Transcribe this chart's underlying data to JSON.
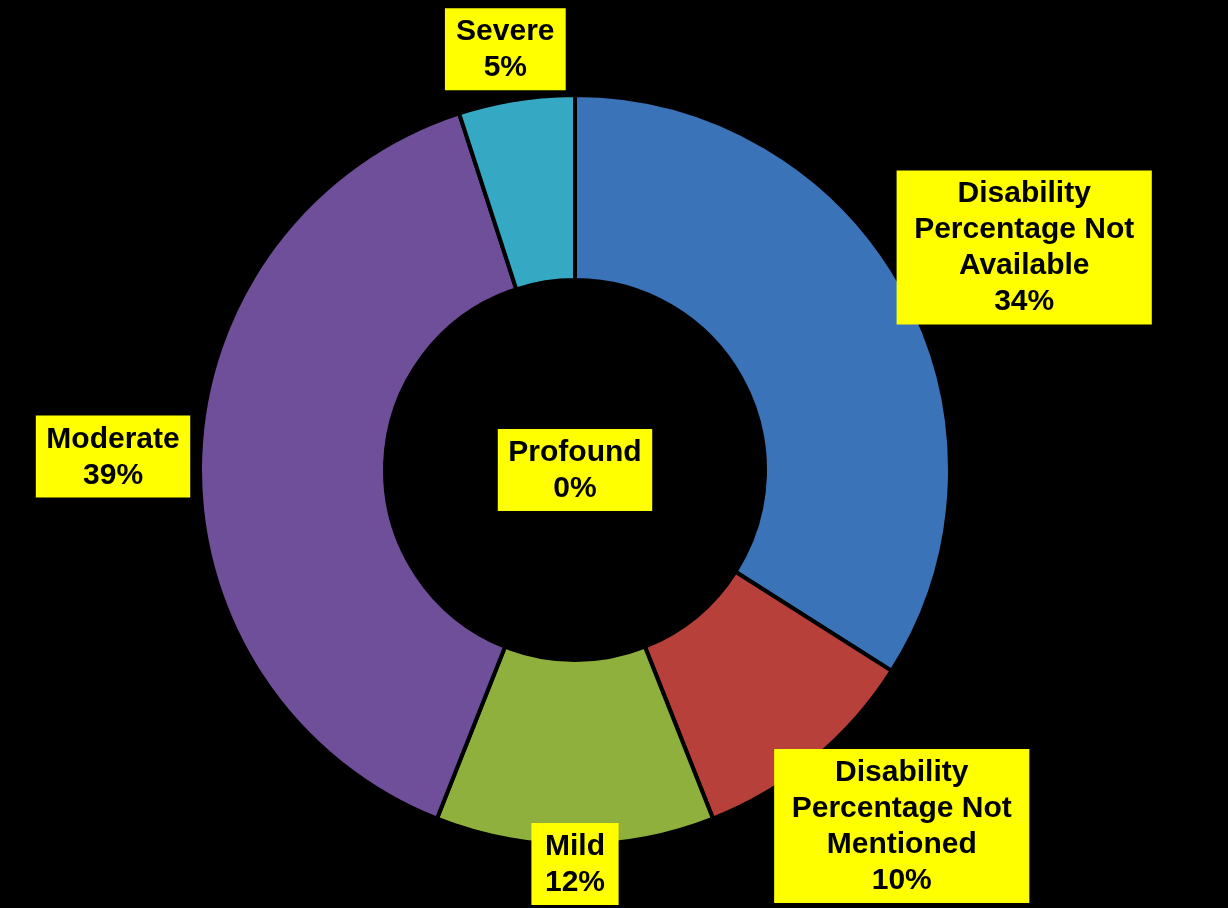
{
  "chart_data": {
    "type": "donut",
    "categories": [
      "Disability Percentage Not Available",
      "Disability Percentage Not Mentioned",
      "Mild",
      "Moderate",
      "Severe",
      "Profound"
    ],
    "values": [
      34,
      10,
      12,
      39,
      5,
      0
    ],
    "value_labels": [
      "34%",
      "10%",
      "12%",
      "39%",
      "5%",
      "0%"
    ],
    "colors": [
      "#3a73b8",
      "#b8403a",
      "#8fb03c",
      "#6f4f9a",
      "#35a8c4",
      "#d98a2b"
    ]
  }
}
